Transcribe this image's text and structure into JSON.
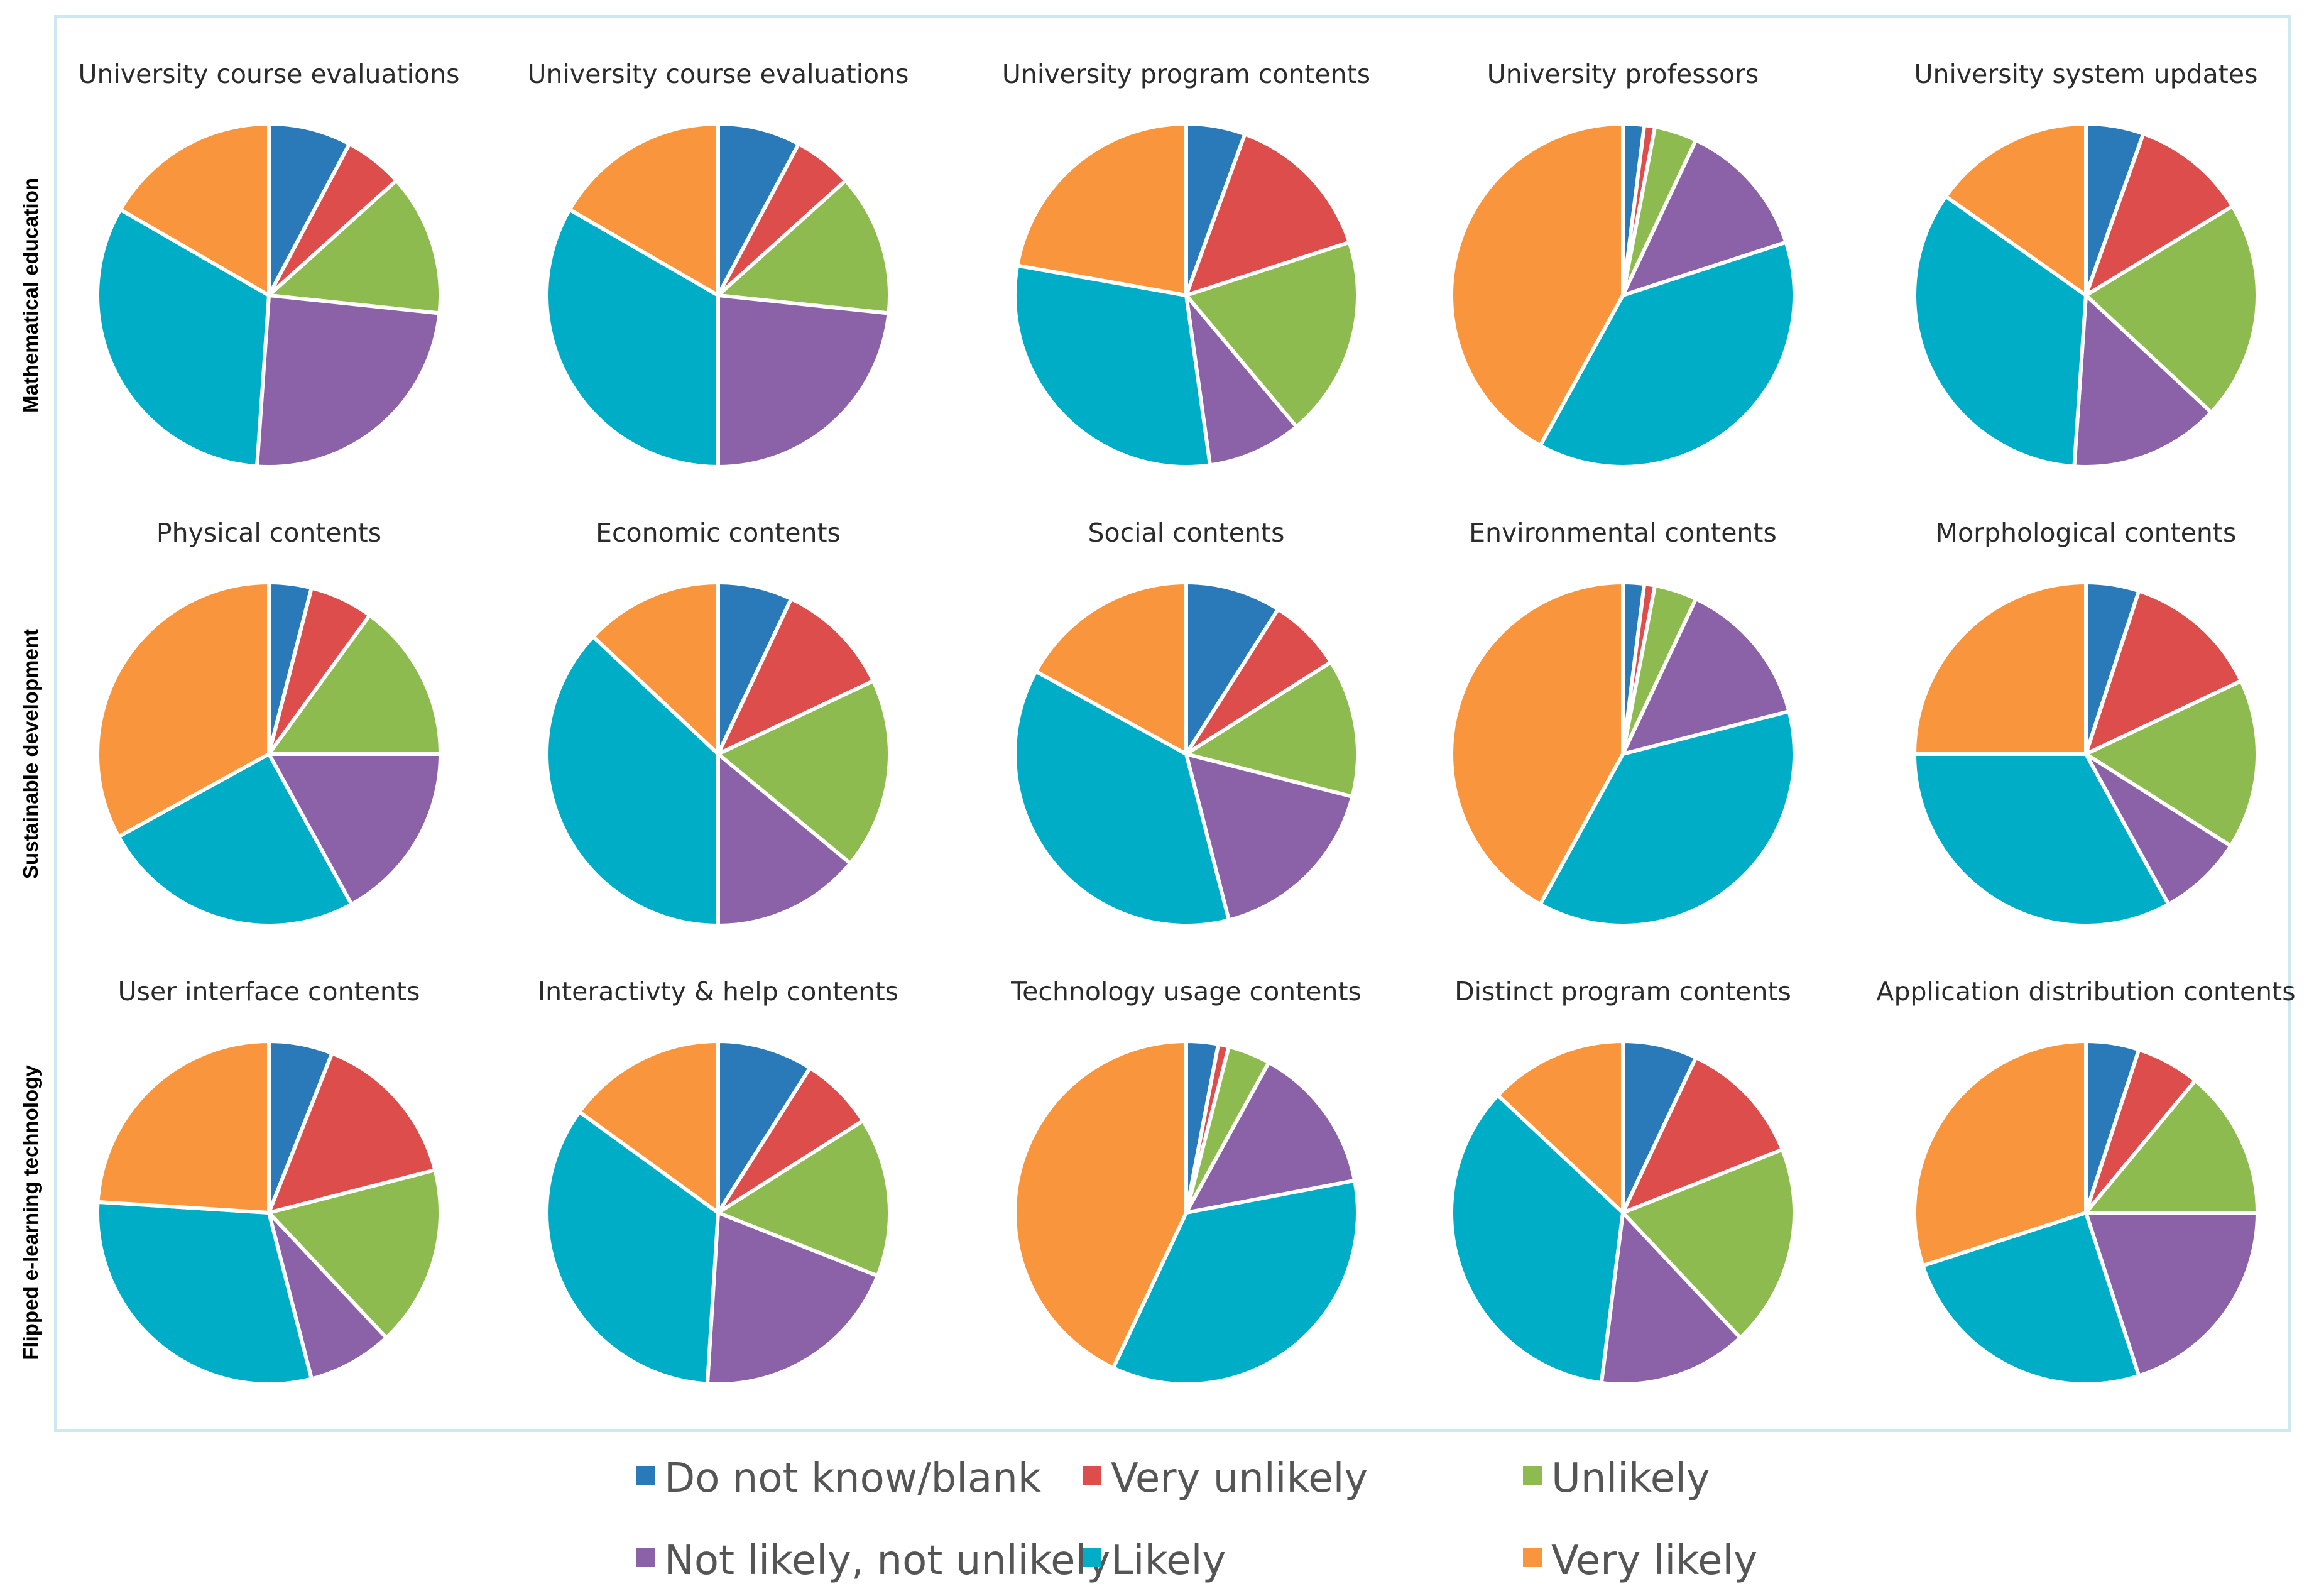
{
  "colors": {
    "Do not know/blank": "#2a7ab9",
    "Very unlikely": "#dc4d4b",
    "Unlikely": "#8dbb50",
    "Not likely, not unlikely": "#8b62a7",
    "Likely": "#00adc6",
    "Very likely": "#f9963d"
  },
  "row_labels": [
    "Mathematical education",
    "Sustainable development",
    "Flipped e-learning technology"
  ],
  "legend": [
    "Do not know/blank",
    "Very unlikely",
    "Unlikely",
    "Not likely, not unlikely",
    "Likely",
    "Very likely"
  ],
  "chart_data": [
    {
      "type": "pie",
      "row": "Mathematical education",
      "title": "University course evaluations",
      "categories": [
        "Do not know/blank",
        "Very unlikely",
        "Unlikely",
        "Not likely, not unlikely",
        "Likely",
        "Very likely"
      ],
      "values": [
        7,
        5,
        12,
        22,
        29,
        15
      ]
    },
    {
      "type": "pie",
      "row": "Mathematical education",
      "title": "University course evaluations",
      "categories": [
        "Do not know/blank",
        "Very unlikely",
        "Unlikely",
        "Not likely, not unlikely",
        "Likely",
        "Very likely"
      ],
      "values": [
        7,
        5,
        12,
        21,
        30,
        15
      ]
    },
    {
      "type": "pie",
      "row": "Mathematical education",
      "title": "University program contents",
      "categories": [
        "Do not know/blank",
        "Very unlikely",
        "Unlikely",
        "Not likely, not unlikely",
        "Likely",
        "Very likely"
      ],
      "values": [
        5,
        13,
        17,
        8,
        27,
        20
      ]
    },
    {
      "type": "pie",
      "row": "Mathematical education",
      "title": "University professors",
      "categories": [
        "Do not know/blank",
        "Very unlikely",
        "Unlikely",
        "Not likely, not unlikely",
        "Likely",
        "Very likely"
      ],
      "values": [
        2,
        1,
        4,
        13,
        38,
        42
      ]
    },
    {
      "type": "pie",
      "row": "Mathematical education",
      "title": "University system updates",
      "categories": [
        "Do not know/blank",
        "Very unlikely",
        "Unlikely",
        "Not likely, not unlikely",
        "Likely",
        "Very likely"
      ],
      "values": [
        5,
        10,
        19,
        13,
        31,
        14
      ]
    },
    {
      "type": "pie",
      "row": "Sustainable development",
      "title": "Physical contents",
      "categories": [
        "Do not know/blank",
        "Very unlikely",
        "Unlikely",
        "Not likely, not unlikely",
        "Likely",
        "Very likely"
      ],
      "values": [
        4,
        6,
        15,
        17,
        25,
        33
      ]
    },
    {
      "type": "pie",
      "row": "Sustainable development",
      "title": "Economic contents",
      "categories": [
        "Do not know/blank",
        "Very unlikely",
        "Unlikely",
        "Not likely, not unlikely",
        "Likely",
        "Very likely"
      ],
      "values": [
        7,
        11,
        18,
        14,
        37,
        13
      ]
    },
    {
      "type": "pie",
      "row": "Sustainable development",
      "title": "Social contents",
      "categories": [
        "Do not know/blank",
        "Very unlikely",
        "Unlikely",
        "Not likely, not unlikely",
        "Likely",
        "Very likely"
      ],
      "values": [
        9,
        7,
        13,
        17,
        37,
        17
      ]
    },
    {
      "type": "pie",
      "row": "Sustainable development",
      "title": "Environmental contents",
      "categories": [
        "Do not know/blank",
        "Very unlikely",
        "Unlikely",
        "Not likely, not unlikely",
        "Likely",
        "Very likely"
      ],
      "values": [
        2,
        1,
        4,
        14,
        37,
        42
      ]
    },
    {
      "type": "pie",
      "row": "Sustainable development",
      "title": "Morphological contents",
      "categories": [
        "Do not know/blank",
        "Very unlikely",
        "Unlikely",
        "Not likely, not unlikely",
        "Likely",
        "Very likely"
      ],
      "values": [
        5,
        13,
        16,
        8,
        33,
        25
      ]
    },
    {
      "type": "pie",
      "row": "Flipped e-learning technology",
      "title": "User interface contents",
      "categories": [
        "Do not know/blank",
        "Very unlikely",
        "Unlikely",
        "Not likely, not unlikely",
        "Likely",
        "Very likely"
      ],
      "values": [
        6,
        15,
        17,
        8,
        30,
        24
      ]
    },
    {
      "type": "pie",
      "row": "Flipped e-learning technology",
      "title": "Interactivty & help contents",
      "categories": [
        "Do not know/blank",
        "Very unlikely",
        "Unlikely",
        "Not likely, not unlikely",
        "Likely",
        "Very likely"
      ],
      "values": [
        9,
        7,
        15,
        20,
        34,
        15
      ]
    },
    {
      "type": "pie",
      "row": "Flipped e-learning technology",
      "title": "Technology usage contents",
      "categories": [
        "Do not know/blank",
        "Very unlikely",
        "Unlikely",
        "Not likely, not unlikely",
        "Likely",
        "Very likely"
      ],
      "values": [
        3,
        1,
        4,
        14,
        35,
        43
      ]
    },
    {
      "type": "pie",
      "row": "Flipped e-learning technology",
      "title": "Distinct program contents",
      "categories": [
        "Do not know/blank",
        "Very unlikely",
        "Unlikely",
        "Not likely, not unlikely",
        "Likely",
        "Very likely"
      ],
      "values": [
        7,
        12,
        19,
        14,
        35,
        13
      ]
    },
    {
      "type": "pie",
      "row": "Flipped e-learning technology",
      "title": "Application distribution contents",
      "categories": [
        "Do not know/blank",
        "Very unlikely",
        "Unlikely",
        "Not likely, not unlikely",
        "Likely",
        "Very likely"
      ],
      "values": [
        5,
        6,
        14,
        20,
        25,
        30
      ]
    }
  ]
}
